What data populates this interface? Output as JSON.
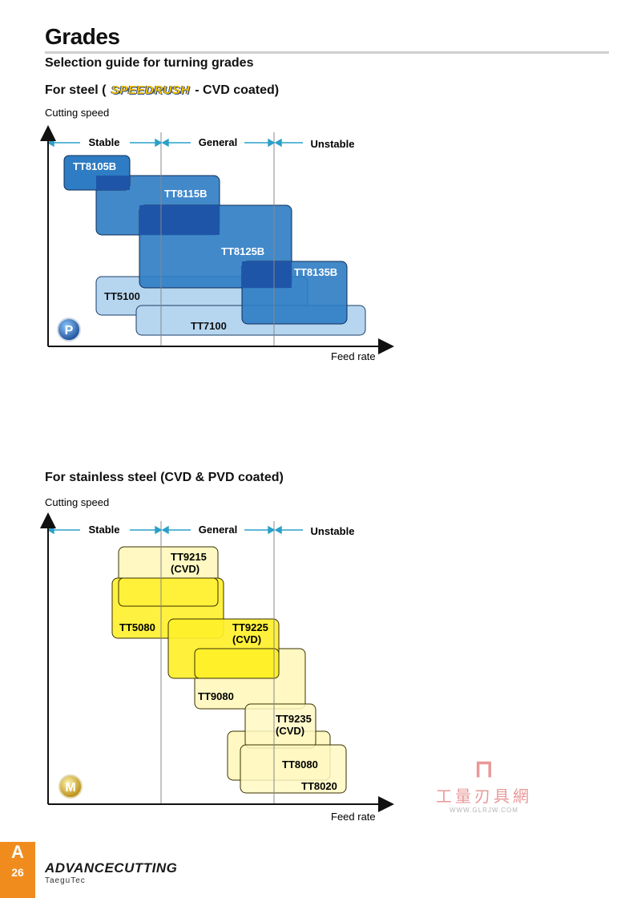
{
  "page": {
    "title": "Grades",
    "subtitle": "Selection guide for turning grades",
    "page_letter": "A",
    "page_number": "26",
    "footer_brand": "ADVANCECUTTING",
    "footer_brand_sub": "TaeguTec"
  },
  "steel": {
    "heading_prefix": "For steel (",
    "heading_logo": "SPEEDRUSH",
    "heading_suffix": " - CVD coated)",
    "y_label": "Cutting speed",
    "x_label": "Feed rate",
    "zones": [
      "Stable",
      "General",
      "Unstable"
    ],
    "badge": "P",
    "grades": [
      {
        "name": "TT8105B"
      },
      {
        "name": "TT8115B"
      },
      {
        "name": "TT8125B"
      },
      {
        "name": "TT8135B"
      },
      {
        "name": "TT5100"
      },
      {
        "name": "TT7100"
      }
    ]
  },
  "stainless": {
    "heading": "For stainless steel (CVD & PVD coated)",
    "y_label": "Cutting speed",
    "x_label": "Feed rate",
    "zones": [
      "Stable",
      "General",
      "Unstable"
    ],
    "badge": "M",
    "grades": [
      {
        "name": "TT9215",
        "sub": "(CVD)"
      },
      {
        "name": "TT5080"
      },
      {
        "name": "TT9225",
        "sub": "(CVD)"
      },
      {
        "name": "TT9080"
      },
      {
        "name": "TT9235",
        "sub": "(CVD)"
      },
      {
        "name": "TT8080"
      },
      {
        "name": "TT8020"
      }
    ]
  },
  "watermark": {
    "name": "工量刃具網",
    "url": "WWW.GLRJW.COM"
  },
  "colors": {
    "steel_dark": "#2e7cc4",
    "steel_light": "#b6d6f0",
    "stainless_bright": "#fff02a",
    "stainless_light": "#fff8c2",
    "accent_orange": "#f08c1e",
    "arrow_teal": "#2aa0c8"
  }
}
